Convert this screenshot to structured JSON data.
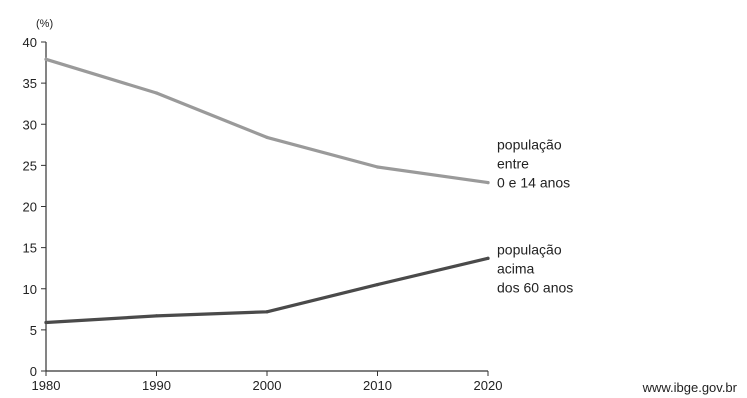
{
  "chart_data": {
    "type": "line",
    "ylabel": "(%)",
    "x": [
      1980,
      1990,
      2000,
      2010,
      2020
    ],
    "xlim": [
      1980,
      2020
    ],
    "ylim": [
      0,
      40
    ],
    "yticks": [
      0,
      5,
      10,
      15,
      20,
      25,
      30,
      35,
      40
    ],
    "xticks": [
      1980,
      1990,
      2000,
      2010,
      2020
    ],
    "grid": false,
    "legend": "inline-right",
    "series": [
      {
        "label_lines": [
          "população",
          "entre",
          "0 e 14 anos"
        ],
        "values": [
          37.9,
          33.8,
          28.4,
          24.8,
          22.9
        ],
        "color": "#9a9a9a"
      },
      {
        "label_lines": [
          "população",
          "acima",
          "dos 60 anos"
        ],
        "values": [
          5.9,
          6.7,
          7.2,
          10.5,
          13.7
        ],
        "color": "#4a4a4a"
      }
    ],
    "source": "www.ibge.gov.br"
  }
}
